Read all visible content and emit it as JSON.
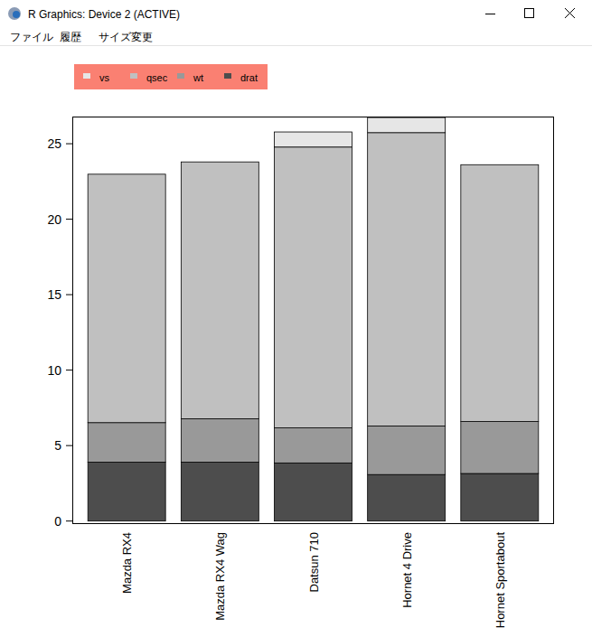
{
  "window": {
    "title": "R Graphics: Device 2 (ACTIVE)",
    "menu": [
      "ファイル",
      "履歴",
      "サイズ変更"
    ]
  },
  "chart_data": {
    "type": "bar",
    "stacked": true,
    "legend": "top-left",
    "categories": [
      "Mazda RX4",
      "Mazda RX4 Wag",
      "Datsun 710",
      "Hornet 4 Drive",
      "Hornet Sportabout"
    ],
    "series": [
      {
        "name": "drat",
        "color": "#4d4d4d",
        "values": [
          3.9,
          3.9,
          3.85,
          3.08,
          3.15
        ]
      },
      {
        "name": "wt",
        "color": "#999999",
        "values": [
          2.62,
          2.875,
          2.32,
          3.215,
          3.44
        ]
      },
      {
        "name": "qsec",
        "color": "#c0c0c0",
        "values": [
          16.46,
          17.02,
          18.61,
          19.44,
          17.02
        ]
      },
      {
        "name": "vs",
        "color": "#e6e6e6",
        "values": [
          0,
          0,
          1,
          1,
          0
        ]
      }
    ],
    "ylim": [
      -0.2,
      26.8
    ],
    "yticks": [
      0,
      5,
      10,
      15,
      20,
      25
    ],
    "grid": false
  }
}
